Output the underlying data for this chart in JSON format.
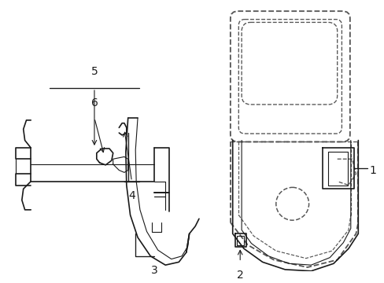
{
  "bg_color": "#ffffff",
  "line_color": "#1a1a1a",
  "dashed_color": "#555555",
  "label_fontsize": 9,
  "lw_main": 1.2,
  "lw_thin": 0.8
}
